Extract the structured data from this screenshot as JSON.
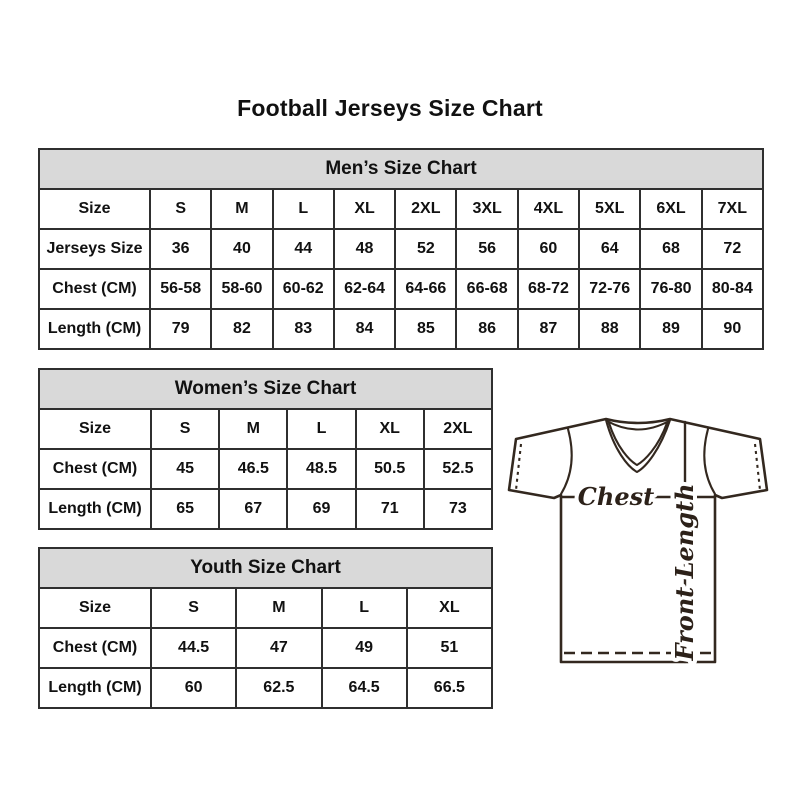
{
  "page": {
    "title": "Football Jerseys Size Chart"
  },
  "tables": {
    "men": {
      "title": "Men’s Size Chart",
      "size_row_label": "Size",
      "columns": [
        "S",
        "M",
        "L",
        "XL",
        "2XL",
        "3XL",
        "4XL",
        "5XL",
        "6XL",
        "7XL"
      ],
      "rows": [
        {
          "label": "Jerseys Size",
          "values": [
            "36",
            "40",
            "44",
            "48",
            "52",
            "56",
            "60",
            "64",
            "68",
            "72"
          ]
        },
        {
          "label": "Chest (CM)",
          "values": [
            "56-58",
            "58-60",
            "60-62",
            "62-64",
            "64-66",
            "66-68",
            "68-72",
            "72-76",
            "76-80",
            "80-84"
          ]
        },
        {
          "label": "Length (CM)",
          "values": [
            "79",
            "82",
            "83",
            "84",
            "85",
            "86",
            "87",
            "88",
            "89",
            "90"
          ]
        }
      ]
    },
    "women": {
      "title": "Women’s Size Chart",
      "size_row_label": "Size",
      "columns": [
        "S",
        "M",
        "L",
        "XL",
        "2XL"
      ],
      "rows": [
        {
          "label": "Chest (CM)",
          "values": [
            "45",
            "46.5",
            "48.5",
            "50.5",
            "52.5"
          ]
        },
        {
          "label": "Length (CM)",
          "values": [
            "65",
            "67",
            "69",
            "71",
            "73"
          ]
        }
      ]
    },
    "youth": {
      "title": "Youth Size Chart",
      "size_row_label": "Size",
      "columns": [
        "S",
        "M",
        "L",
        "XL"
      ],
      "rows": [
        {
          "label": "Chest (CM)",
          "values": [
            "44.5",
            "47",
            "49",
            "51"
          ]
        },
        {
          "label": "Length (CM)",
          "values": [
            "60",
            "62.5",
            "64.5",
            "66.5"
          ]
        }
      ]
    }
  },
  "diagram": {
    "chest_label": "Chest",
    "front_length_label": "Front Length"
  },
  "colors": {
    "table_header_bg": "#d9d9d9",
    "table_border": "#2f2f2f",
    "text": "#111111",
    "jersey_line": "#33281f"
  }
}
